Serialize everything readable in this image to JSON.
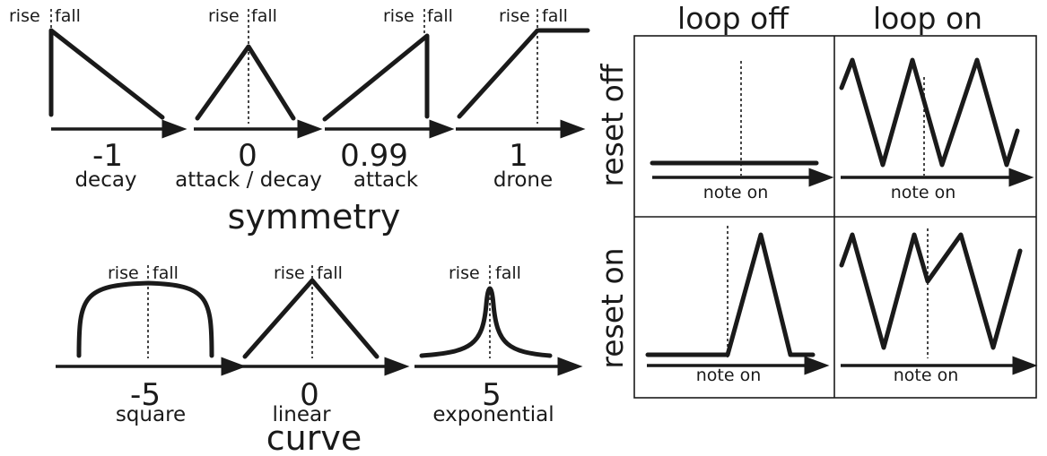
{
  "symmetry": {
    "title": "symmetry",
    "rise_label": "rise",
    "fall_label": "fall",
    "panels": [
      {
        "value": "-1",
        "name": "decay"
      },
      {
        "value": "0",
        "name": "attack / decay"
      },
      {
        "value": "0.99",
        "name": "attack"
      },
      {
        "value": "1",
        "name": "drone"
      }
    ]
  },
  "curve": {
    "title": "curve",
    "rise_label": "rise",
    "fall_label": "fall",
    "panels": [
      {
        "value": "-5",
        "name": "square"
      },
      {
        "value": "0",
        "name": "linear"
      },
      {
        "value": "5",
        "name": "exponential"
      }
    ]
  },
  "grid": {
    "columns": [
      "loop off",
      "loop on"
    ],
    "rows": [
      "reset off",
      "reset on"
    ],
    "axis_label": "note on"
  }
}
